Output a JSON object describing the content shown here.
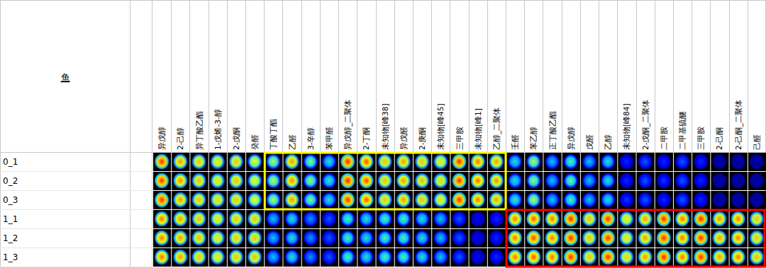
{
  "chart_data": {
    "type": "heatmap",
    "title": "鱼",
    "rows": [
      "0_1",
      "0_2",
      "0_3",
      "1_1",
      "1_2",
      "1_3"
    ],
    "columns": [
      "异戊醇",
      "2-己醇",
      "异丁酸乙酯",
      "1-戊烯-3-醇",
      "2-戊酮",
      "癸醛",
      "丁酸丁酯",
      "乙醛",
      "3-辛醇",
      "苯甲醛",
      "异戊醇_二聚体",
      "2-丁酮",
      "未知物[峰38]",
      "异戊醛",
      "2-庚酮",
      "未知物[峰45]",
      "三甲胺",
      "未知物[峰1]",
      "乙醇_二聚体",
      "壬醛",
      "苯乙醇",
      "正丁酸乙酯",
      "异戊醇",
      "戊醛",
      "乙醇",
      "未知物[峰84]",
      "2-戊酮_二聚体",
      "二甲胺",
      "二甲基硫醚",
      "三甲胺",
      "2-己酮",
      "2-己酮_二聚体",
      "己醛"
    ],
    "values": [
      [
        95,
        80,
        75,
        70,
        75,
        65,
        55,
        80,
        50,
        40,
        95,
        90,
        75,
        80,
        75,
        70,
        95,
        85,
        80,
        40,
        55,
        35,
        45,
        35,
        40,
        20,
        25,
        20,
        25,
        20,
        5,
        5,
        5
      ],
      [
        95,
        82,
        76,
        70,
        76,
        66,
        56,
        82,
        52,
        42,
        96,
        92,
        76,
        80,
        76,
        72,
        95,
        88,
        82,
        40,
        52,
        35,
        48,
        35,
        40,
        20,
        25,
        22,
        25,
        20,
        5,
        5,
        5
      ],
      [
        95,
        80,
        75,
        72,
        75,
        65,
        55,
        80,
        50,
        40,
        94,
        90,
        75,
        80,
        75,
        70,
        95,
        85,
        80,
        42,
        55,
        36,
        45,
        35,
        40,
        22,
        25,
        20,
        25,
        20,
        5,
        5,
        5
      ],
      [
        85,
        80,
        75,
        70,
        75,
        75,
        35,
        40,
        30,
        25,
        45,
        40,
        45,
        45,
        40,
        35,
        25,
        15,
        20,
        85,
        90,
        85,
        95,
        75,
        95,
        70,
        80,
        95,
        85,
        95,
        80,
        85,
        75
      ],
      [
        85,
        80,
        76,
        70,
        75,
        75,
        35,
        40,
        30,
        25,
        45,
        40,
        45,
        45,
        40,
        35,
        25,
        15,
        20,
        85,
        92,
        85,
        95,
        75,
        95,
        70,
        80,
        95,
        85,
        95,
        80,
        85,
        75
      ],
      [
        86,
        80,
        75,
        70,
        75,
        76,
        35,
        40,
        30,
        25,
        45,
        40,
        45,
        45,
        40,
        35,
        25,
        15,
        20,
        85,
        90,
        86,
        95,
        75,
        95,
        72,
        80,
        95,
        85,
        95,
        80,
        85,
        76
      ]
    ],
    "zlim": [
      0,
      100
    ]
  }
}
